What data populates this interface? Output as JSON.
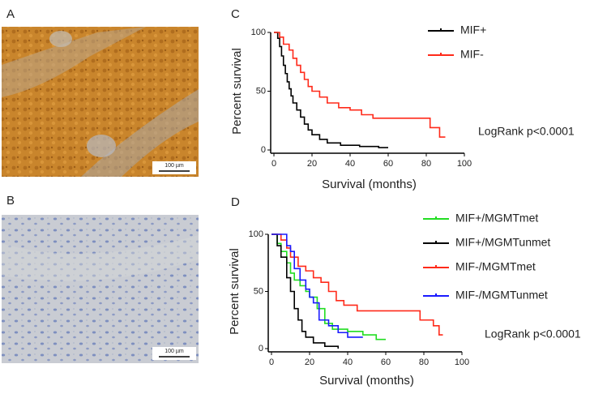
{
  "panels": {
    "a": {
      "label": "A",
      "scale_bar": "100 µm"
    },
    "b": {
      "label": "B",
      "scale_bar": "100 µm"
    }
  },
  "chart_data": [
    {
      "type": "line",
      "step": true,
      "label": "C",
      "annotation": "LogRank p<0.0001",
      "xlabel": "Survival (months)",
      "ylabel": "Percent survival",
      "xlim": [
        0,
        100
      ],
      "ylim": [
        0,
        100
      ],
      "xticks": [
        0,
        20,
        40,
        60,
        80,
        100
      ],
      "yticks": [
        0,
        50,
        100
      ],
      "series": [
        {
          "name": "MIF+",
          "color": "#000000",
          "x": [
            0,
            2,
            3,
            4,
            5,
            6,
            7,
            8,
            9,
            10,
            12,
            14,
            16,
            18,
            20,
            24,
            28,
            35,
            45,
            55,
            60
          ],
          "values": [
            100,
            95,
            88,
            80,
            72,
            65,
            58,
            52,
            46,
            40,
            34,
            28,
            22,
            17,
            13,
            9,
            6,
            4,
            3,
            2,
            2
          ]
        },
        {
          "name": "MIF-",
          "color": "#ff2a1a",
          "x": [
            0,
            3,
            5,
            8,
            10,
            12,
            14,
            16,
            18,
            20,
            24,
            28,
            34,
            40,
            46,
            52,
            78,
            82,
            87,
            90
          ],
          "values": [
            100,
            96,
            90,
            85,
            78,
            72,
            66,
            60,
            54,
            50,
            45,
            40,
            36,
            34,
            30,
            27,
            27,
            19,
            11,
            11
          ]
        }
      ]
    },
    {
      "type": "line",
      "step": true,
      "label": "D",
      "annotation": "LogRank p<0.0001",
      "xlabel": "Survival (months)",
      "ylabel": "Percent survival",
      "xlim": [
        0,
        100
      ],
      "ylim": [
        0,
        100
      ],
      "xticks": [
        0,
        20,
        40,
        60,
        80,
        100
      ],
      "yticks": [
        0,
        50,
        100
      ],
      "series": [
        {
          "name": "MIF+/MGMTmet",
          "color": "#22dd22",
          "x": [
            0,
            3,
            5,
            8,
            10,
            12,
            15,
            18,
            20,
            24,
            28,
            32,
            40,
            48,
            55,
            60
          ],
          "values": [
            100,
            92,
            85,
            75,
            66,
            60,
            55,
            50,
            45,
            35,
            22,
            17,
            15,
            12,
            8,
            8
          ]
        },
        {
          "name": "MIF+/MGMTunmet",
          "color": "#000000",
          "x": [
            0,
            3,
            5,
            8,
            10,
            12,
            14,
            16,
            18,
            22,
            28,
            35
          ],
          "values": [
            100,
            90,
            80,
            62,
            50,
            35,
            25,
            15,
            10,
            5,
            2,
            0
          ]
        },
        {
          "name": "MIF-/MGMTmet",
          "color": "#ff2a1a",
          "x": [
            0,
            5,
            8,
            10,
            14,
            18,
            22,
            26,
            30,
            34,
            38,
            45,
            55,
            70,
            78,
            85,
            88,
            90
          ],
          "values": [
            100,
            95,
            88,
            80,
            72,
            68,
            62,
            58,
            50,
            42,
            38,
            33,
            33,
            33,
            25,
            20,
            12,
            12
          ]
        },
        {
          "name": "MIF-/MGMTunmet",
          "color": "#1a1aff",
          "x": [
            0,
            6,
            8,
            10,
            12,
            15,
            18,
            20,
            22,
            25,
            30,
            35,
            40,
            48
          ],
          "values": [
            100,
            100,
            90,
            85,
            70,
            60,
            52,
            45,
            40,
            25,
            20,
            14,
            10,
            10
          ]
        }
      ]
    }
  ]
}
